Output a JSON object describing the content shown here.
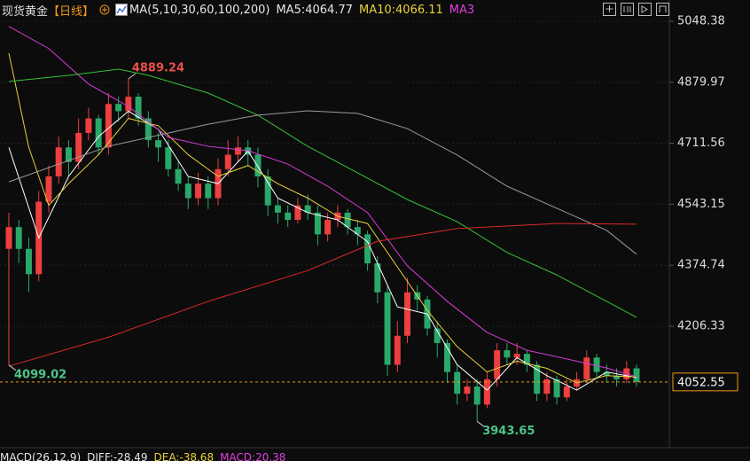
{
  "chart_data": {
    "type": "candlestick",
    "title": "现货黄金",
    "period": "【日线】",
    "indicator_labels": [
      {
        "text": "MA(5,10,30,60,100,200)",
        "color": "#e6e6e6"
      },
      {
        "text": "MA5:4064.77",
        "color": "#e6e6e6"
      },
      {
        "text": "MA10:4066.11",
        "color": "#e8d23a"
      },
      {
        "text": "MA3",
        "color": "#e040e0"
      }
    ],
    "macd_labels": [
      {
        "text": "MACD(26,12,9)",
        "color": "#e6e6e6"
      },
      {
        "text": "DIFF:-28.49",
        "color": "#e6e6e6"
      },
      {
        "text": "DEA:-38.68",
        "color": "#e8d23a"
      },
      {
        "text": "MACD:20.38",
        "color": "#e040e0"
      }
    ],
    "ylim": [
      3871,
      5107
    ],
    "yticks": [
      5048.38,
      4879.97,
      4711.56,
      4543.15,
      4374.74,
      4206.33
    ],
    "grid": true,
    "up_color": "#ec3f3f",
    "down_color": "#2aa86a",
    "open": [
      4420,
      4480,
      4420,
      4350,
      4550,
      4620,
      4700,
      4660,
      4740,
      4780,
      4700,
      4820,
      4800,
      4840,
      4780,
      4720,
      4700,
      4640,
      4600,
      4560,
      4600,
      4560,
      4640,
      4680,
      4700,
      4680,
      4620,
      4540,
      4520,
      4500,
      4540,
      4520,
      4460,
      4500,
      4520,
      4480,
      4460,
      4380,
      4300,
      4100,
      4180,
      4300,
      4280,
      4200,
      4160,
      4080,
      4020,
      4040,
      3990,
      4060,
      4140,
      4120,
      4130,
      4100,
      4020,
      4060,
      4010,
      4040,
      4060,
      4120,
      4080,
      4070,
      4060,
      4090
    ],
    "high": [
      4520,
      4500,
      4450,
      4580,
      4650,
      4730,
      4720,
      4780,
      4810,
      4790,
      4850,
      4840,
      4889.24,
      4850,
      4800,
      4740,
      4720,
      4660,
      4620,
      4630,
      4620,
      4670,
      4720,
      4730,
      4720,
      4700,
      4640,
      4560,
      4540,
      4560,
      4570,
      4540,
      4520,
      4540,
      4530,
      4500,
      4470,
      4400,
      4320,
      4220,
      4340,
      4320,
      4290,
      4220,
      4170,
      4100,
      4060,
      4060,
      4080,
      4160,
      4160,
      4160,
      4140,
      4110,
      4080,
      4070,
      4060,
      4080,
      4140,
      4130,
      4100,
      4090,
      4110,
      4100
    ],
    "low": [
      4099.02,
      4380,
      4300,
      4330,
      4520,
      4600,
      4620,
      4640,
      4720,
      4680,
      4680,
      4770,
      4780,
      4760,
      4700,
      4660,
      4620,
      4580,
      4530,
      4540,
      4530,
      4540,
      4620,
      4660,
      4650,
      4590,
      4510,
      4490,
      4480,
      4490,
      4500,
      4430,
      4440,
      4480,
      4460,
      4430,
      4360,
      4270,
      4070,
      4080,
      4160,
      4250,
      4180,
      4120,
      4050,
      3990,
      4000,
      3943.65,
      3980,
      4040,
      4100,
      4100,
      4080,
      4000,
      4000,
      3990,
      4000,
      4030,
      4050,
      4060,
      4050,
      4040,
      4050,
      4040
    ],
    "close": [
      4480,
      4420,
      4350,
      4550,
      4620,
      4700,
      4660,
      4740,
      4780,
      4700,
      4820,
      4800,
      4840,
      4780,
      4720,
      4700,
      4640,
      4600,
      4560,
      4600,
      4560,
      4640,
      4680,
      4700,
      4680,
      4620,
      4540,
      4520,
      4500,
      4540,
      4520,
      4460,
      4500,
      4520,
      4480,
      4460,
      4380,
      4300,
      4100,
      4180,
      4300,
      4280,
      4200,
      4160,
      4080,
      4020,
      4040,
      3990,
      4060,
      4140,
      4120,
      4130,
      4100,
      4020,
      4060,
      4010,
      4040,
      4060,
      4120,
      4080,
      4070,
      4060,
      4090,
      4052.55
    ],
    "annotations": [
      {
        "field": "high",
        "index": 12,
        "color": "#e8504a"
      },
      {
        "field": "low",
        "index": 0,
        "color": "#4cc48a"
      },
      {
        "field": "low",
        "index": 47,
        "color": "#4cc48a"
      }
    ],
    "last_price_color": "#f0961e",
    "ma_series": [
      {
        "color": "#ffffff",
        "x": [
          0,
          3,
          6,
          9,
          12,
          15,
          18,
          21,
          24,
          27,
          30,
          33,
          36,
          39,
          42,
          45,
          48,
          51,
          54,
          57,
          60,
          63
        ],
        "values": [
          4700,
          4450,
          4620,
          4730,
          4800,
          4750,
          4620,
          4600,
          4690,
          4560,
          4520,
          4500,
          4440,
          4260,
          4240,
          4100,
          4030,
          4120,
          4070,
          4030,
          4080,
          4064.77
        ]
      },
      {
        "color": "#e8d23a",
        "x": [
          0,
          2,
          4,
          6,
          9,
          12,
          15,
          18,
          21,
          24,
          27,
          30,
          33,
          36,
          39,
          42,
          45,
          48,
          51,
          54,
          57,
          60,
          63
        ],
        "values": [
          4960,
          4700,
          4540,
          4600,
          4680,
          4780,
          4760,
          4680,
          4620,
          4650,
          4600,
          4560,
          4510,
          4490,
          4370,
          4250,
          4150,
          4080,
          4110,
          4090,
          4050,
          4070,
          4066.11
        ]
      },
      {
        "color": "#d83ad8",
        "x": [
          0,
          4,
          8,
          12,
          16,
          20,
          24,
          28,
          32,
          36,
          40,
          44,
          48,
          52,
          56,
          60,
          63
        ],
        "values": [
          5034,
          4973,
          4875,
          4813,
          4728,
          4703,
          4691,
          4654,
          4593,
          4520,
          4373,
          4275,
          4189,
          4140,
          4116,
          4091,
          4067
        ]
      },
      {
        "color": "#35c335",
        "x": [
          0,
          6,
          11,
          14,
          20,
          25,
          30,
          35,
          40,
          45,
          50,
          55,
          60,
          63
        ],
        "values": [
          4882,
          4899,
          4916,
          4899,
          4850,
          4789,
          4703,
          4630,
          4556,
          4495,
          4410,
          4348,
          4275,
          4231
        ]
      },
      {
        "color": "#9a9a9a",
        "x": [
          0,
          10,
          20,
          25,
          30,
          35,
          40,
          45,
          50,
          55,
          60,
          63
        ],
        "values": [
          4605,
          4703,
          4764,
          4789,
          4801,
          4794,
          4752,
          4679,
          4593,
          4532,
          4471,
          4405
        ]
      },
      {
        "color": "#e02a2a",
        "x": [
          0,
          10,
          20,
          30,
          37,
          45,
          55,
          63
        ],
        "values": [
          4096,
          4176,
          4275,
          4360,
          4441,
          4476,
          4490,
          4488
        ]
      }
    ]
  }
}
